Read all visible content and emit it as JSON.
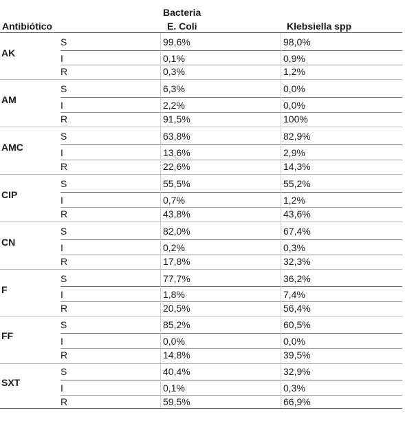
{
  "header": {
    "antibiotic_label": "Antibiótico",
    "bacteria_label": "Bacteria",
    "col1_label": "E. Coli",
    "col2_label": "Klebsiella spp"
  },
  "groups": [
    {
      "name": "AK",
      "rows": [
        {
          "cat": "S",
          "v1": "99,6%",
          "v2": "98,0%"
        },
        {
          "cat": "I",
          "v1": "0,1%",
          "v2": "0,9%"
        },
        {
          "cat": "R",
          "v1": "0,3%",
          "v2": "1,2%"
        }
      ]
    },
    {
      "name": "AM",
      "rows": [
        {
          "cat": "S",
          "v1": "6,3%",
          "v2": "0,0%"
        },
        {
          "cat": "I",
          "v1": "2,2%",
          "v2": "0,0%"
        },
        {
          "cat": "R",
          "v1": "91,5%",
          "v2": "100%"
        }
      ]
    },
    {
      "name": "AMC",
      "rows": [
        {
          "cat": "S",
          "v1": "63,8%",
          "v2": "82,9%"
        },
        {
          "cat": "I",
          "v1": "13,6%",
          "v2": "2,9%"
        },
        {
          "cat": "R",
          "v1": "22,6%",
          "v2": "14,3%"
        }
      ]
    },
    {
      "name": "CIP",
      "rows": [
        {
          "cat": "S",
          "v1": "55,5%",
          "v2": "55,2%"
        },
        {
          "cat": "I",
          "v1": "0,7%",
          "v2": "1,2%"
        },
        {
          "cat": "R",
          "v1": "43,8%",
          "v2": "43,6%"
        }
      ]
    },
    {
      "name": "CN",
      "rows": [
        {
          "cat": "S",
          "v1": "82,0%",
          "v2": "67,4%"
        },
        {
          "cat": "I",
          "v1": "0,2%",
          "v2": "0,3%"
        },
        {
          "cat": "R",
          "v1": "17,8%",
          "v2": "32,3%"
        }
      ]
    },
    {
      "name": "F",
      "rows": [
        {
          "cat": "S",
          "v1": "77,7%",
          "v2": "36,2%"
        },
        {
          "cat": "I",
          "v1": "1,8%",
          "v2": "7,4%"
        },
        {
          "cat": "R",
          "v1": "20,5%",
          "v2": "56,4%"
        }
      ]
    },
    {
      "name": "FF",
      "rows": [
        {
          "cat": "S",
          "v1": "85,2%",
          "v2": "60,5%"
        },
        {
          "cat": "I",
          "v1": "0,0%",
          "v2": "0,0%"
        },
        {
          "cat": "R",
          "v1": "14,8%",
          "v2": "39,5%"
        }
      ]
    },
    {
      "name": "SXT",
      "rows": [
        {
          "cat": "S",
          "v1": "40,4%",
          "v2": "32,9%"
        },
        {
          "cat": "I",
          "v1": "0,1%",
          "v2": "0,3%"
        },
        {
          "cat": "R",
          "v1": "59,5%",
          "v2": "66,9%"
        }
      ]
    }
  ]
}
